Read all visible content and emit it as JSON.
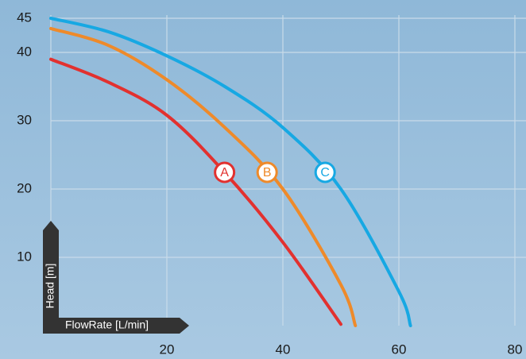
{
  "chart_data": {
    "type": "line",
    "x_label": "FlowRate [L/min]",
    "y_label": "Head [m]",
    "xlim": [
      0,
      80
    ],
    "xticks": [
      20,
      40,
      60,
      80
    ],
    "ylim": [
      0,
      45
    ],
    "yticks": [
      10,
      20,
      30,
      40,
      45
    ],
    "grid": true,
    "series": [
      {
        "name": "A",
        "color": "#e2312f",
        "x": [
          0,
          10,
          20,
          30,
          40,
          50
        ],
        "values": [
          39,
          35.6,
          30.8,
          22.4,
          12.2,
          0.2
        ]
      },
      {
        "name": "B",
        "color": "#ee8a2a",
        "x": [
          0,
          10,
          20,
          30,
          40,
          50,
          52.5
        ],
        "values": [
          43.5,
          41,
          36,
          29,
          20,
          6,
          0
        ]
      },
      {
        "name": "C",
        "color": "#17a8e3",
        "x": [
          0,
          10,
          20,
          30,
          40,
          50,
          60,
          62
        ],
        "values": [
          45,
          43,
          39.5,
          35,
          29,
          20,
          5,
          0
        ]
      }
    ]
  }
}
